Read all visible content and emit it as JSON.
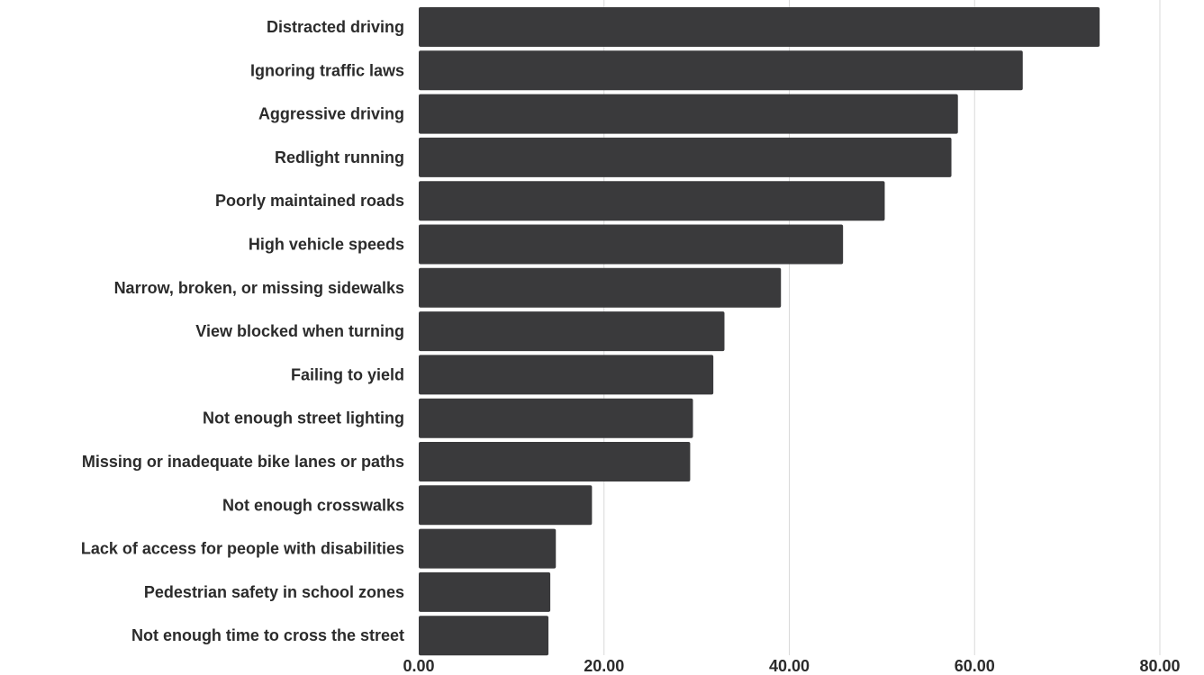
{
  "chart_data": {
    "type": "bar",
    "orientation": "horizontal",
    "categories": [
      "Distracted driving",
      "Ignoring traffic laws",
      "Aggressive driving",
      "Redlight running",
      "Poorly maintained roads",
      "High vehicle speeds",
      "Narrow, broken, or missing sidewalks",
      "View blocked when turning",
      "Failing to yield",
      "Not enough street lighting",
      "Missing or inadequate bike lanes or paths",
      "Not enough crosswalks",
      "Lack of access for people with disabilities",
      "Pedestrian safety in school zones",
      "Not enough time to cross the street"
    ],
    "values": [
      73.5,
      65.2,
      58.2,
      57.5,
      50.3,
      45.8,
      39.1,
      33.0,
      31.8,
      29.6,
      29.3,
      18.7,
      14.8,
      14.2,
      14.0
    ],
    "xlim": [
      0,
      80
    ],
    "x_ticks": [
      "0.00",
      "20.00",
      "40.00",
      "60.00",
      "80.00"
    ],
    "x_tick_values": [
      0,
      20,
      40,
      60,
      80
    ],
    "grid": true,
    "bar_color": "#3a3a3c",
    "grid_color": "#d9d9d9",
    "text_color": "#2b2b2b"
  }
}
